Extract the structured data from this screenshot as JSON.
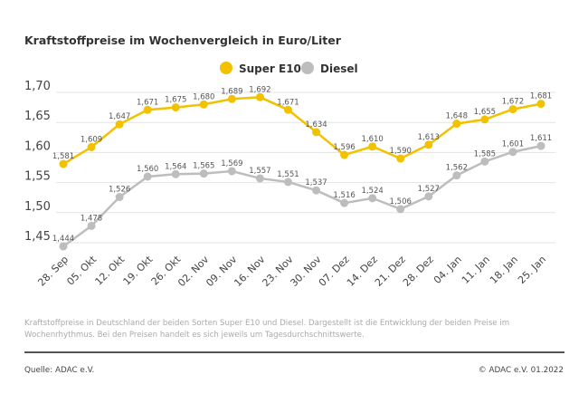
{
  "chart_data": {
    "type": "line",
    "title": "Kraftstoffpreise im Wochenvergleich in Euro/Liter",
    "categories": [
      "28. Sep",
      "05. Okt",
      "12. Okt",
      "19. Okt",
      "26. Okt",
      "02. Nov",
      "09. Nov",
      "16. Nov",
      "23. Nov",
      "30. Nov",
      "07. Dez",
      "14. Dez",
      "21. Dez",
      "28. Dez",
      "04. Jan",
      "11. Jan",
      "18. Jan",
      "25. Jan"
    ],
    "series": [
      {
        "name": "Super E10",
        "color": "#f2c200",
        "values": [
          1.581,
          1.609,
          1.647,
          1.671,
          1.675,
          1.68,
          1.689,
          1.692,
          1.671,
          1.634,
          1.596,
          1.61,
          1.59,
          1.613,
          1.648,
          1.655,
          1.672,
          1.681
        ]
      },
      {
        "name": "Diesel",
        "color": "#bdbdbd",
        "values": [
          1.444,
          1.478,
          1.526,
          1.56,
          1.564,
          1.565,
          1.569,
          1.557,
          1.551,
          1.537,
          1.516,
          1.524,
          1.506,
          1.527,
          1.562,
          1.585,
          1.601,
          1.611
        ]
      }
    ],
    "yticks": [
      "1,70",
      "1,65",
      "1,60",
      "1,55",
      "1,50",
      "1,45"
    ],
    "ylim": [
      1.45,
      1.7
    ],
    "grid": true,
    "legend": "top-center",
    "xlabel": "",
    "ylabel": ""
  },
  "footer": {
    "note": "Kraftstoffpreise in Deutschland der beiden Sorten Super E10 und Diesel. Dargestellt ist die Entwicklung der beiden Preise im Wochenrhythmus. Bei den Preisen handelt es sich jeweils um Tagesdurchschnittswerte.",
    "source": "Quelle: ADAC e.V.",
    "copyright": "© ADAC e.V. 01.2022"
  }
}
